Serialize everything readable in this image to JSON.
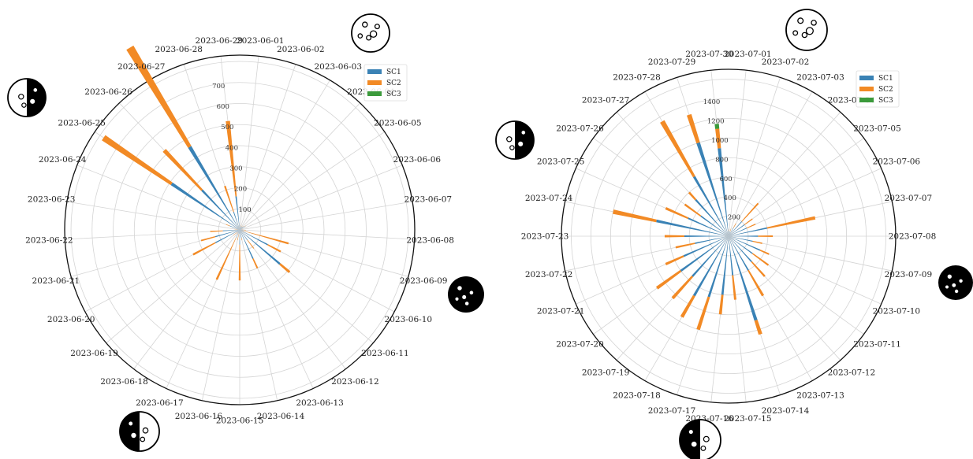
{
  "chart_data": [
    {
      "type": "polar-bar",
      "title": "",
      "legend": {
        "placement": "top-right",
        "entries": [
          "SC1",
          "SC2",
          "SC3"
        ]
      },
      "colors": {
        "SC1": "#3a82b5",
        "SC2": "#f28a25",
        "SC3": "#3b9a3b"
      },
      "radial_ticks": [
        "100",
        "200",
        "300",
        "400",
        "500",
        "600",
        "700"
      ],
      "rmax": 830,
      "categories": [
        "2023-06-01",
        "2023-06-02",
        "2023-06-03",
        "2023-06-04",
        "2023-06-05",
        "2023-06-06",
        "2023-06-07",
        "2023-06-08",
        "2023-06-09",
        "2023-06-10",
        "2023-06-11",
        "2023-06-12",
        "2023-06-13",
        "2023-06-14",
        "2023-06-15",
        "2023-06-16",
        "2023-06-17",
        "2023-06-18",
        "2023-06-19",
        "2023-06-20",
        "2023-06-21",
        "2023-06-22",
        "2023-06-23",
        "2023-06-24",
        "2023-06-25",
        "2023-06-26",
        "2023-06-27",
        "2023-06-28",
        "2023-06-29"
      ],
      "series": [
        {
          "name": "SC1",
          "values": [
            10,
            20,
            15,
            20,
            30,
            10,
            10,
            20,
            10,
            150,
            250,
            60,
            150,
            40,
            70,
            20,
            40,
            15,
            20,
            130,
            120,
            80,
            10,
            50,
            390,
            260,
            460,
            90,
            160
          ]
        },
        {
          "name": "SC2",
          "values": [
            5,
            5,
            5,
            5,
            5,
            5,
            5,
            10,
            230,
            70,
            60,
            50,
            50,
            10,
            170,
            30,
            220,
            10,
            20,
            120,
            70,
            60,
            15,
            20,
            390,
            260,
            550,
            130,
            360
          ]
        },
        {
          "name": "SC3",
          "values": [
            0,
            0,
            0,
            0,
            0,
            0,
            0,
            0,
            0,
            0,
            0,
            0,
            0,
            0,
            0,
            0,
            0,
            0,
            0,
            0,
            0,
            0,
            0,
            0,
            0,
            0,
            0,
            0,
            0
          ]
        }
      ],
      "moon_phases": [
        {
          "label": "full-moon",
          "category": "2023-06-03"
        },
        {
          "label": "first-quarter",
          "category": "2023-06-10"
        },
        {
          "label": "new-moon",
          "category": "2023-06-17"
        },
        {
          "label": "last-quarter",
          "category": "2023-06-27"
        }
      ]
    },
    {
      "type": "polar-bar",
      "title": "",
      "legend": {
        "placement": "top-right",
        "entries": [
          "SC1",
          "SC2",
          "SC3"
        ]
      },
      "colors": {
        "SC1": "#3a82b5",
        "SC2": "#f28a25",
        "SC3": "#3b9a3b"
      },
      "radial_ticks": [
        "200",
        "400",
        "600",
        "800",
        "1000",
        "1200",
        "1400"
      ],
      "rmax": 1700,
      "categories": [
        "2023-07-01",
        "2023-07-02",
        "2023-07-03",
        "2023-07-04",
        "2023-07-05",
        "2023-07-06",
        "2023-07-07",
        "2023-07-08",
        "2023-07-09",
        "2023-07-10",
        "2023-07-11",
        "2023-07-12",
        "2023-07-13",
        "2023-07-14",
        "2023-07-15",
        "2023-07-16",
        "2023-07-17",
        "2023-07-18",
        "2023-07-19",
        "2023-07-20",
        "2023-07-21",
        "2023-07-22",
        "2023-07-23",
        "2023-07-24",
        "2023-07-25",
        "2023-07-26",
        "2023-07-27",
        "2023-07-28",
        "2023-07-29",
        "2023-07-30"
      ],
      "series": [
        {
          "name": "SC1",
          "values": [
            50,
            50,
            100,
            200,
            200,
            200,
            400,
            300,
            250,
            350,
            300,
            350,
            400,
            900,
            400,
            600,
            650,
            700,
            550,
            600,
            500,
            350,
            450,
            750,
            450,
            350,
            500,
            700,
            1000,
            900
          ]
        },
        {
          "name": "SC2",
          "values": [
            20,
            30,
            50,
            250,
            100,
            100,
            500,
            150,
            100,
            100,
            200,
            200,
            300,
            150,
            250,
            200,
            350,
            250,
            300,
            300,
            200,
            200,
            200,
            450,
            250,
            200,
            100,
            650,
            300,
            200
          ]
        },
        {
          "name": "SC3",
          "values": [
            0,
            0,
            0,
            0,
            0,
            0,
            0,
            0,
            0,
            0,
            0,
            0,
            0,
            0,
            0,
            0,
            0,
            0,
            0,
            0,
            0,
            0,
            0,
            0,
            0,
            0,
            0,
            0,
            0,
            50
          ]
        }
      ],
      "moon_phases": [
        {
          "label": "full-moon",
          "category": "2023-07-03"
        },
        {
          "label": "first-quarter",
          "category": "2023-07-10"
        },
        {
          "label": "new-moon",
          "category": "2023-07-17"
        },
        {
          "label": "last-quarter",
          "category": "2023-07-27"
        }
      ]
    }
  ]
}
